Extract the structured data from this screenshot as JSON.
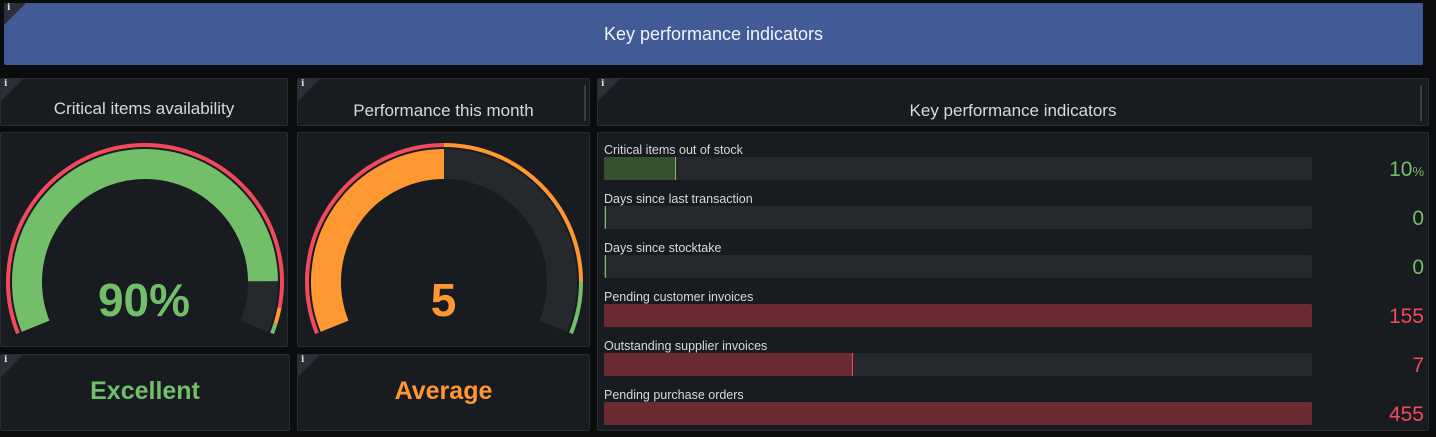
{
  "header": {
    "title": "Key performance indicators"
  },
  "availability": {
    "title": "Critical items availability",
    "gauge": {
      "value_text": "90%",
      "value": 90,
      "min": 0,
      "max": 100,
      "color": "#73bf69",
      "thresholds": [
        {
          "upto": 0.97,
          "color": "#f2495c"
        },
        {
          "upto": 1.0,
          "color": "#ff9830"
        }
      ]
    },
    "status": {
      "text": "Excellent",
      "color": "#73bf69"
    }
  },
  "performance": {
    "title": "Performance this month",
    "gauge": {
      "value_text": "5",
      "value": 5,
      "min": 0,
      "max": 10,
      "color": "#ff9830"
    },
    "status": {
      "text": "Average",
      "color": "#ff9830"
    }
  },
  "kpis": {
    "title": "Key performance indicators",
    "rows": [
      {
        "label": "Critical items out of stock",
        "value": "10",
        "unit": "%",
        "fraction": 0.1,
        "fill": "#37512f",
        "edge": "#73bf69",
        "value_color": "#73bf69"
      },
      {
        "label": "Days since last transaction",
        "value": "0",
        "unit": "",
        "fraction": 0.0,
        "fill": "#37512f",
        "edge": "#73bf69",
        "value_color": "#73bf69"
      },
      {
        "label": "Days since stocktake",
        "value": "0",
        "unit": "",
        "fraction": 0.0,
        "fill": "#37512f",
        "edge": "#73bf69",
        "value_color": "#73bf69"
      },
      {
        "label": "Pending customer invoices",
        "value": "155",
        "unit": "",
        "fraction": 1.0,
        "fill": "#6a2b33",
        "edge": "#f2495c",
        "value_color": "#f2495c"
      },
      {
        "label": "Outstanding supplier invoices",
        "value": "7",
        "unit": "",
        "fraction": 0.35,
        "fill": "#6a2b33",
        "edge": "#f2495c",
        "value_color": "#f2495c"
      },
      {
        "label": "Pending purchase orders",
        "value": "455",
        "unit": "",
        "fraction": 1.0,
        "fill": "#6a2b33",
        "edge": "#f2495c",
        "value_color": "#f2495c"
      }
    ]
  },
  "colors": {
    "background": "#0b0c0e",
    "panel": "#181b1f",
    "header": "#425b96",
    "track": "#25282d"
  }
}
